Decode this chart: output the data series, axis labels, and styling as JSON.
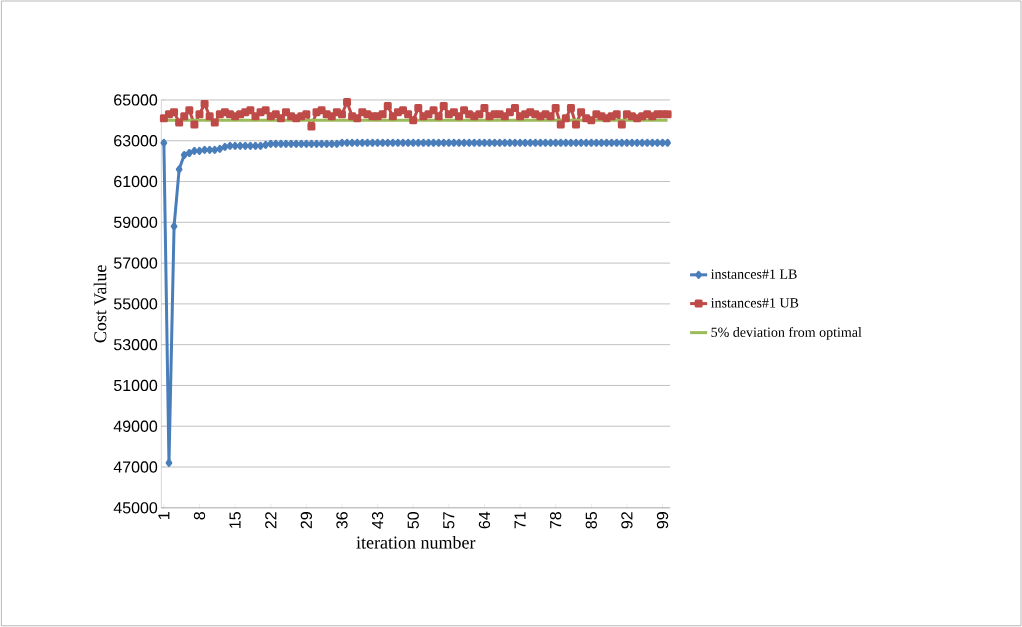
{
  "chart_data": {
    "type": "line",
    "xlabel": "iteration number",
    "ylabel": "Cost Value",
    "categories": [
      "1",
      null,
      null,
      null,
      null,
      null,
      null,
      "8",
      null,
      null,
      null,
      null,
      null,
      null,
      "15",
      null,
      null,
      null,
      null,
      null,
      null,
      "22",
      null,
      null,
      null,
      null,
      null,
      null,
      "29",
      null,
      null,
      null,
      null,
      null,
      null,
      "36",
      null,
      null,
      null,
      null,
      null,
      null,
      "43",
      null,
      null,
      null,
      null,
      null,
      null,
      "50",
      null,
      null,
      null,
      null,
      null,
      null,
      "57",
      null,
      null,
      null,
      null,
      null,
      null,
      "64",
      null,
      null,
      null,
      null,
      null,
      null,
      "71",
      null,
      null,
      null,
      null,
      null,
      null,
      "78",
      null,
      null,
      null,
      null,
      null,
      null,
      "85",
      null,
      null,
      null,
      null,
      null,
      null,
      "92",
      null,
      null,
      null,
      null,
      null,
      null,
      "99",
      null
    ],
    "series": [
      {
        "name": "instances#1 LB",
        "color": "#4a7ebb",
        "marker": "diamond",
        "values": [
          62900,
          47200,
          58800,
          61600,
          62300,
          62400,
          62500,
          62500,
          62550,
          62550,
          62550,
          62600,
          62700,
          62750,
          62750,
          62750,
          62750,
          62750,
          62750,
          62750,
          62800,
          62850,
          62850,
          62850,
          62850,
          62850,
          62850,
          62850,
          62850,
          62850,
          62850,
          62850,
          62850,
          62850,
          62850,
          62900,
          62900,
          62900,
          62900,
          62900,
          62900,
          62900,
          62900,
          62900,
          62900,
          62900,
          62900,
          62900,
          62900,
          62900,
          62900,
          62900,
          62900,
          62900,
          62900,
          62900,
          62900,
          62900,
          62900,
          62900,
          62900,
          62900,
          62900,
          62900,
          62900,
          62900,
          62900,
          62900,
          62900,
          62900,
          62900,
          62900,
          62900,
          62900,
          62900,
          62900,
          62900,
          62900,
          62900,
          62900,
          62900,
          62900,
          62900,
          62900,
          62900,
          62900,
          62900,
          62900,
          62900,
          62900,
          62900,
          62900,
          62900,
          62900,
          62900,
          62900,
          62900,
          62900,
          62900,
          62900
        ]
      },
      {
        "name": "instances#1 UB",
        "color": "#be4b48",
        "marker": "square",
        "values": [
          64100,
          64300,
          64400,
          63900,
          64200,
          64500,
          63800,
          64300,
          64800,
          64200,
          63900,
          64300,
          64400,
          64300,
          64200,
          64300,
          64400,
          64500,
          64200,
          64400,
          64500,
          64200,
          64300,
          64100,
          64400,
          64200,
          64100,
          64200,
          64300,
          63700,
          64400,
          64500,
          64300,
          64200,
          64400,
          64300,
          64900,
          64200,
          64100,
          64400,
          64300,
          64200,
          64200,
          64300,
          64700,
          64200,
          64400,
          64500,
          64300,
          64000,
          64600,
          64200,
          64300,
          64500,
          64200,
          64700,
          64300,
          64400,
          64200,
          64500,
          64300,
          64200,
          64300,
          64600,
          64200,
          64300,
          64300,
          64200,
          64400,
          64600,
          64200,
          64300,
          64400,
          64300,
          64200,
          64300,
          64200,
          64600,
          63800,
          64100,
          64600,
          63800,
          64400,
          64100,
          64000,
          64300,
          64200,
          64100,
          64200,
          64300,
          63800,
          64300,
          64200,
          64100,
          64200,
          64300,
          64200,
          64300,
          64300,
          64300
        ]
      },
      {
        "name": "5% deviation from optimal",
        "color": "#9bbb59",
        "marker": "none",
        "values": [
          64000,
          64000,
          64000,
          64000,
          64000,
          64000,
          64000,
          64000,
          64000,
          64000,
          64000,
          64000,
          64000,
          64000,
          64000,
          64000,
          64000,
          64000,
          64000,
          64000,
          64000,
          64000,
          64000,
          64000,
          64000,
          64000,
          64000,
          64000,
          64000,
          64000,
          64000,
          64000,
          64000,
          64000,
          64000,
          64000,
          64000,
          64000,
          64000,
          64000,
          64000,
          64000,
          64000,
          64000,
          64000,
          64000,
          64000,
          64000,
          64000,
          64000,
          64000,
          64000,
          64000,
          64000,
          64000,
          64000,
          64000,
          64000,
          64000,
          64000,
          64000,
          64000,
          64000,
          64000,
          64000,
          64000,
          64000,
          64000,
          64000,
          64000,
          64000,
          64000,
          64000,
          64000,
          64000,
          64000,
          64000,
          64000,
          64000,
          64000,
          64000,
          64000,
          64000,
          64000,
          64000,
          64000,
          64000,
          64000,
          64000,
          64000,
          64000,
          64000,
          64000,
          64000,
          64000,
          64000,
          64000,
          64000,
          64000,
          64000
        ]
      }
    ],
    "ylim": [
      45000,
      65000
    ],
    "yticks": [
      45000,
      47000,
      49000,
      51000,
      53000,
      55000,
      57000,
      59000,
      61000,
      63000,
      65000
    ],
    "grid": "y",
    "legend": "right"
  }
}
